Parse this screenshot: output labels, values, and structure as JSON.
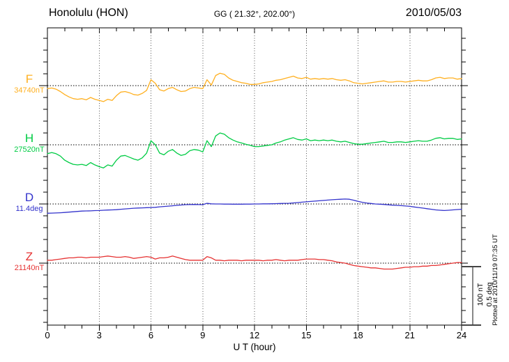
{
  "header": {
    "station": "Honolulu (HON)",
    "coordinates": "GG ( 21.32°, 202.00°)",
    "date": "2010/05/03"
  },
  "axes": {
    "x_label": "U T (hour)",
    "x_ticks": [
      0,
      3,
      6,
      9,
      12,
      15,
      18,
      21,
      24
    ],
    "x_minor_step_hours": 1,
    "x_range_hours": [
      0,
      24
    ],
    "grid_hours": [
      3,
      6,
      9,
      12,
      15,
      18,
      21
    ],
    "y_tick_interval_nT": 20,
    "y_tick_interval_deg": 0.1
  },
  "scale_bar": {
    "label_nt": "100 nT",
    "label_deg": "0.5 deg"
  },
  "footnote": "Plotted at 2010/11/19 07:35 UT",
  "chart_data": {
    "type": "line",
    "title": "Honolulu (HON) magnetogram",
    "date": "2010/05/03",
    "xlabel": "U T (hour)",
    "x_range_hours": [
      0,
      24
    ],
    "x_start_hour": 0,
    "x_step_hours": 0.25,
    "grid": "dotted 3-hour vertical lines, dotted baseline per component",
    "legend_position": "left labels",
    "scale": {
      "nT_per_division": 100,
      "deg_per_division": 0.5
    },
    "series": [
      {
        "name": "F",
        "unit": "nT",
        "baseline": 34740,
        "baseline_label": "34740nT",
        "color": "#FFB020",
        "offsets": [
          -5,
          -4,
          -6,
          -10,
          -15,
          -19,
          -22,
          -23,
          -22,
          -24,
          -20,
          -23,
          -25,
          -27,
          -23,
          -25,
          -17,
          -11,
          -10,
          -12,
          -15,
          -16,
          -13,
          -8,
          10,
          4,
          -7,
          -9,
          -5,
          -3,
          -7,
          -10,
          -9,
          -5,
          -3,
          -4,
          -5,
          10,
          1,
          17,
          21,
          19,
          13,
          9,
          7,
          5,
          4,
          2,
          2,
          3,
          5,
          6,
          7,
          9,
          10,
          12,
          14,
          16,
          13,
          12,
          14,
          11,
          12,
          11,
          12,
          11,
          12,
          10,
          9,
          10,
          8,
          5,
          4,
          3,
          4,
          5,
          6,
          7,
          8,
          6,
          6,
          7,
          7,
          6,
          7,
          8,
          9,
          8,
          8,
          10,
          13,
          14,
          12,
          13,
          13,
          11,
          12
        ]
      },
      {
        "name": "H",
        "unit": "nT",
        "baseline": 27520,
        "baseline_label": "27520nT",
        "color": "#00CC44",
        "offsets": [
          -15,
          -13,
          -15,
          -19,
          -26,
          -30,
          -33,
          -34,
          -33,
          -35,
          -30,
          -34,
          -37,
          -39,
          -34,
          -36,
          -26,
          -19,
          -18,
          -21,
          -24,
          -26,
          -22,
          -14,
          7,
          0,
          -14,
          -17,
          -11,
          -8,
          -14,
          -18,
          -16,
          -10,
          -8,
          -9,
          -12,
          7,
          -3,
          15,
          20,
          18,
          12,
          8,
          5,
          3,
          1,
          -1,
          -3,
          -3,
          -2,
          -1,
          0,
          3,
          5,
          8,
          10,
          12,
          9,
          8,
          10,
          7,
          8,
          7,
          8,
          7,
          8,
          6,
          5,
          6,
          4,
          2,
          1,
          1,
          2,
          3,
          4,
          5,
          6,
          4,
          4,
          5,
          5,
          4,
          5,
          6,
          7,
          6,
          6,
          8,
          11,
          12,
          10,
          11,
          11,
          9,
          10
        ]
      },
      {
        "name": "D",
        "unit": "deg",
        "baseline": 11.4,
        "baseline_label": "11.4deg",
        "color": "#3333CC",
        "offsets": [
          -0.078,
          -0.077,
          -0.076,
          -0.074,
          -0.072,
          -0.069,
          -0.066,
          -0.063,
          -0.06,
          -0.059,
          -0.058,
          -0.056,
          -0.055,
          -0.053,
          -0.051,
          -0.05,
          -0.048,
          -0.045,
          -0.042,
          -0.039,
          -0.036,
          -0.034,
          -0.033,
          -0.031,
          -0.03,
          -0.028,
          -0.024,
          -0.021,
          -0.018,
          -0.015,
          -0.012,
          -0.009,
          -0.006,
          -0.005,
          -0.004,
          -0.005,
          -0.006,
          0.006,
          0.001,
          0.0,
          0.0,
          -0.001,
          -0.001,
          -0.002,
          -0.002,
          -0.002,
          -0.001,
          -0.001,
          0.0,
          0.0,
          0.001,
          0.001,
          0.002,
          0.003,
          0.004,
          0.005,
          0.006,
          0.009,
          0.012,
          0.015,
          0.018,
          0.021,
          0.024,
          0.027,
          0.03,
          0.033,
          0.036,
          0.038,
          0.04,
          0.042,
          0.04,
          0.032,
          0.022,
          0.014,
          0.008,
          0.004,
          0.0,
          -0.002,
          -0.004,
          -0.007,
          -0.01,
          -0.012,
          -0.014,
          -0.017,
          -0.02,
          -0.025,
          -0.03,
          -0.035,
          -0.04,
          -0.045,
          -0.05,
          -0.053,
          -0.055,
          -0.053,
          -0.05,
          -0.047,
          -0.045
        ]
      },
      {
        "name": "Z",
        "unit": "nT",
        "baseline": 21140,
        "baseline_label": "21140nT",
        "color": "#E63232",
        "offsets": [
          5,
          5,
          6,
          7,
          8,
          9,
          9,
          10,
          10,
          9,
          10,
          10,
          10,
          11,
          12,
          11,
          10,
          10,
          11,
          10,
          8,
          9,
          10,
          11,
          10,
          7,
          9,
          9,
          10,
          12,
          10,
          8,
          6,
          5,
          5,
          5,
          5,
          11,
          9,
          5,
          5,
          4,
          5,
          5,
          5,
          4,
          5,
          5,
          5,
          5,
          4,
          5,
          5,
          6,
          5,
          4,
          5,
          5,
          5,
          6,
          7,
          7,
          7,
          6,
          6,
          5,
          4,
          2,
          1,
          0,
          -2,
          -4,
          -5,
          -6,
          -7,
          -8,
          -8,
          -9,
          -10,
          -10,
          -10,
          -9,
          -8,
          -7,
          -7,
          -6,
          -6,
          -5,
          -5,
          -4,
          -4,
          -3,
          -2,
          -1,
          0,
          1,
          1
        ]
      }
    ]
  }
}
